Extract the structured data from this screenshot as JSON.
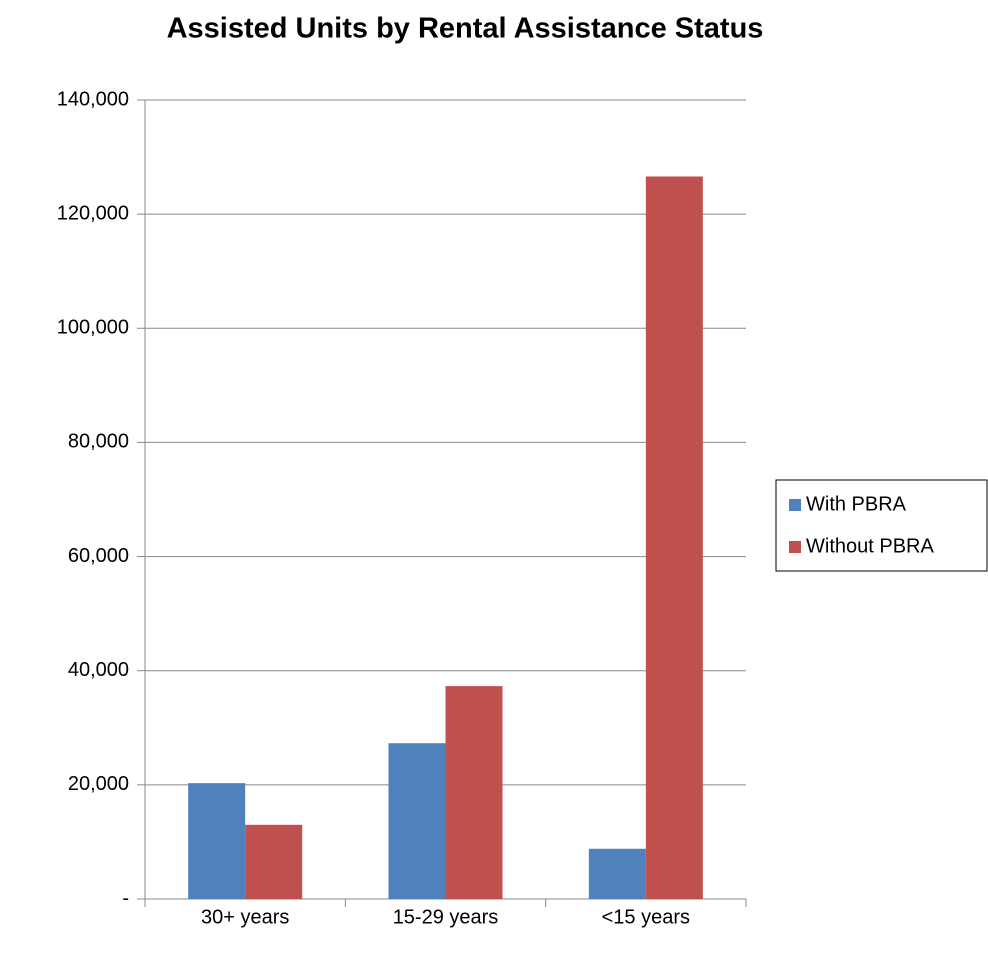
{
  "chart_data": {
    "type": "bar",
    "title": "Assisted Units by Rental Assistance Status",
    "categories": [
      "30+ years",
      "15-29 years",
      "<15 years"
    ],
    "series": [
      {
        "name": "With PBRA",
        "color": "#4f81bd",
        "values": [
          20300,
          27300,
          8800
        ]
      },
      {
        "name": "Without PBRA",
        "color": "#c0504d",
        "values": [
          13000,
          37300,
          126600
        ]
      }
    ],
    "ylim": [
      0,
      140000
    ],
    "yticks": [
      {
        "value": 0,
        "label": "-"
      },
      {
        "value": 20000,
        "label": "20,000"
      },
      {
        "value": 40000,
        "label": "40,000"
      },
      {
        "value": 60000,
        "label": "60,000"
      },
      {
        "value": 80000,
        "label": "80,000"
      },
      {
        "value": 100000,
        "label": "100,000"
      },
      {
        "value": 120000,
        "label": "120,000"
      },
      {
        "value": 140000,
        "label": "140,000"
      }
    ],
    "grid": true,
    "legend": "right"
  }
}
